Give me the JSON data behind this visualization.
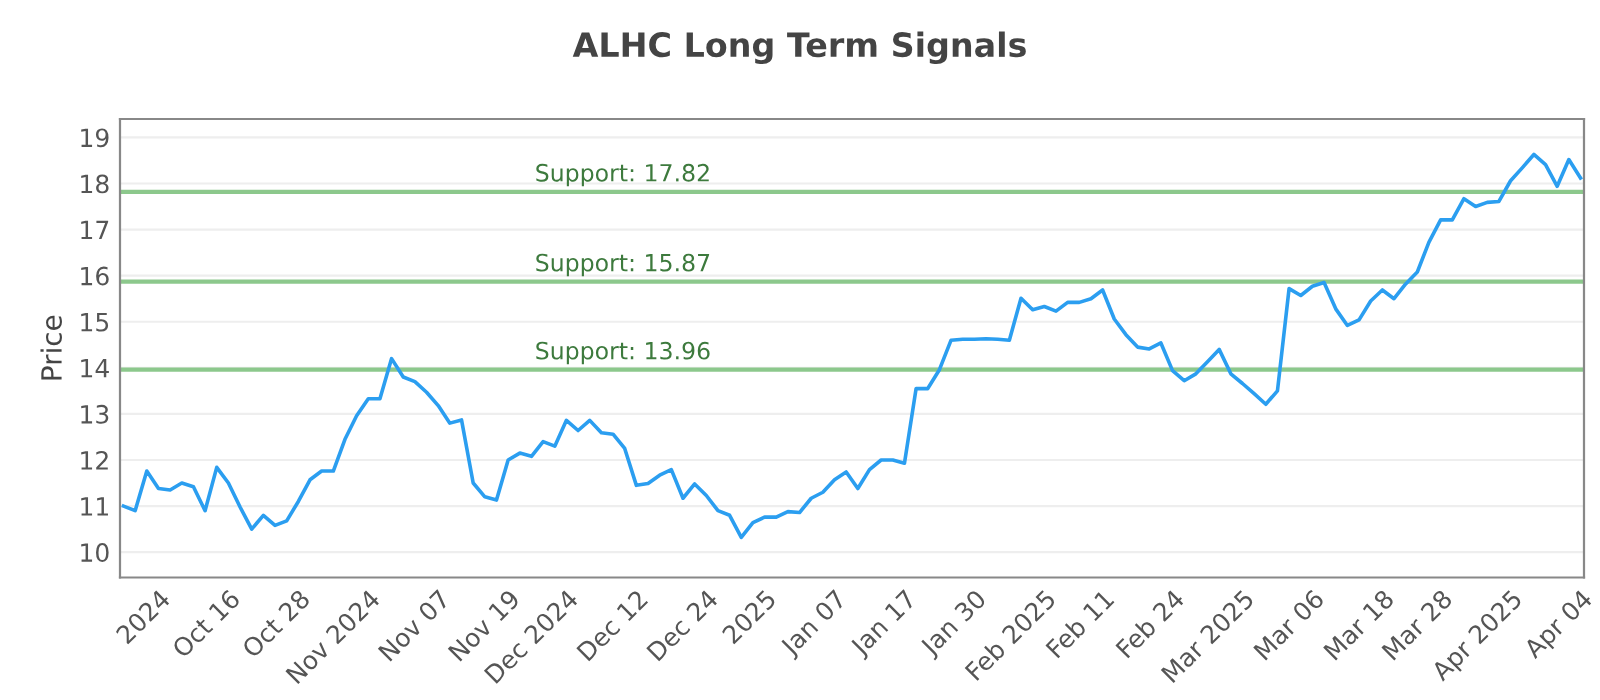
{
  "chart_data": {
    "type": "line",
    "title": "ALHC Long Term Signals",
    "ylabel": "Price",
    "categories": [
      null,
      null,
      null,
      "2024",
      null,
      null,
      null,
      null,
      null,
      "Oct 16",
      null,
      null,
      null,
      null,
      null,
      "Oct 28",
      null,
      null,
      null,
      null,
      null,
      "Nov 2024",
      null,
      null,
      null,
      null,
      null,
      "Nov 07",
      null,
      null,
      null,
      null,
      null,
      "Nov 19",
      null,
      null,
      null,
      null,
      "Dec 2024",
      null,
      null,
      null,
      null,
      null,
      "Dec 12",
      null,
      null,
      null,
      null,
      null,
      "Dec 24",
      null,
      null,
      null,
      null,
      "2025",
      null,
      null,
      null,
      null,
      null,
      "Jan 07",
      null,
      null,
      null,
      null,
      null,
      "Jan 17",
      null,
      null,
      null,
      null,
      null,
      "Jan 30",
      null,
      null,
      null,
      null,
      null,
      "Feb 2025",
      null,
      null,
      null,
      null,
      "Feb 11",
      null,
      null,
      null,
      null,
      null,
      "Feb 24",
      null,
      null,
      null,
      null,
      null,
      "Mar 2025",
      null,
      null,
      null,
      null,
      null,
      "Mar 06",
      null,
      null,
      null,
      null,
      null,
      "Mar 18",
      null,
      null,
      null,
      null,
      "Mar 28",
      null,
      null,
      null,
      null,
      null,
      "Apr 2025",
      null,
      null,
      null,
      null,
      null,
      "Apr 04"
    ],
    "series": [
      {
        "color": "#2b9ef0",
        "values": [
          11.0,
          10.9,
          11.76,
          11.38,
          11.35,
          11.5,
          11.42,
          10.9,
          11.84,
          11.5,
          10.98,
          10.5,
          10.8,
          10.58,
          10.68,
          11.1,
          11.57,
          11.76,
          11.76,
          12.45,
          12.96,
          13.33,
          13.33,
          14.2,
          13.8,
          13.7,
          13.47,
          13.18,
          12.8,
          12.87,
          11.5,
          11.2,
          11.13,
          12.0,
          12.15,
          12.08,
          12.4,
          12.3,
          12.86,
          12.64,
          12.86,
          12.59,
          12.56,
          12.25,
          11.45,
          11.49,
          11.67,
          11.79,
          11.17,
          11.48,
          11.23,
          10.9,
          10.8,
          10.32,
          10.64,
          10.76,
          10.76,
          10.88,
          10.86,
          11.17,
          11.3,
          11.57,
          11.74,
          11.38,
          11.79,
          12.0,
          12.0,
          11.93,
          13.55,
          13.55,
          13.96,
          14.6,
          14.62,
          14.62,
          14.63,
          14.62,
          14.6,
          15.51,
          15.26,
          15.33,
          15.23,
          15.42,
          15.42,
          15.5,
          15.69,
          15.06,
          14.72,
          14.45,
          14.41,
          14.54,
          13.94,
          13.72,
          13.87,
          14.13,
          14.4,
          13.87,
          13.66,
          13.44,
          13.21,
          13.5,
          15.72,
          15.57,
          15.77,
          15.85,
          15.28,
          14.92,
          15.04,
          15.45,
          15.69,
          15.5,
          15.82,
          16.08,
          16.73,
          17.21,
          17.21,
          17.67,
          17.5,
          17.59,
          17.61,
          18.06,
          18.34,
          18.63,
          18.41,
          17.94,
          18.52,
          18.12
        ]
      }
    ],
    "ylim": [
      9.45,
      19.4
    ],
    "yticks": [
      10,
      11,
      12,
      13,
      14,
      15,
      16,
      17,
      18,
      19
    ],
    "grid": "y",
    "ref_lines": [
      {
        "axis": "y",
        "value": 17.82,
        "label": "Support: 17.82",
        "color": "#8cc88c"
      },
      {
        "axis": "y",
        "value": 15.87,
        "label": "Support: 15.87",
        "color": "#8cc88c"
      },
      {
        "axis": "y",
        "value": 13.96,
        "label": "Support: 13.96",
        "color": "#8cc88c"
      }
    ]
  }
}
